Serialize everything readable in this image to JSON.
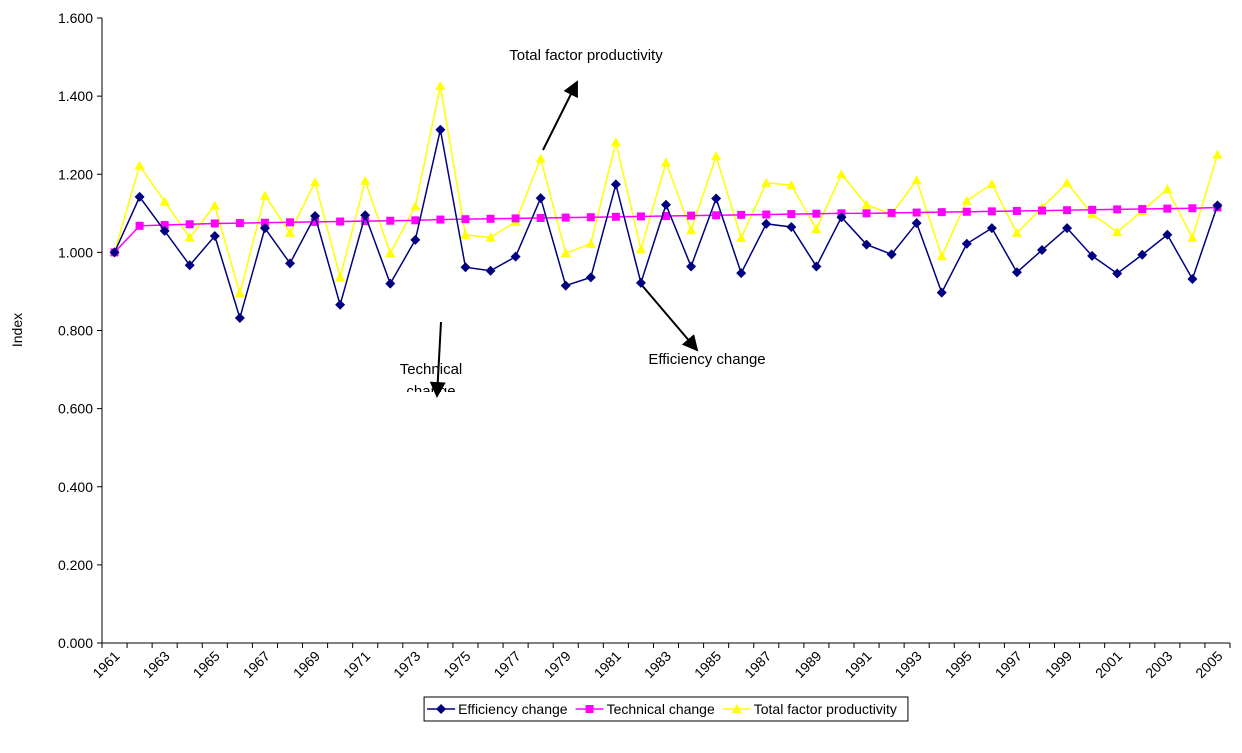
{
  "chart_data": {
    "type": "line",
    "y_label": "Index",
    "categories": [
      "1961",
      null,
      "1963",
      null,
      "1965",
      null,
      "1967",
      null,
      "1969",
      null,
      "1971",
      null,
      "1973",
      null,
      "1975",
      null,
      "1977",
      null,
      "1979",
      null,
      "1981",
      null,
      "1983",
      null,
      "1985",
      null,
      "1987",
      null,
      "1989",
      null,
      "1991",
      null,
      "1993",
      null,
      "1995",
      null,
      "1997",
      null,
      "1999",
      null,
      "2001",
      null,
      "2003",
      null,
      "2005"
    ],
    "series": [
      {
        "name": "Efficiency change",
        "color": "#000080",
        "marker": "diamond",
        "values": [
          1.0,
          1.142,
          1.055,
          0.967,
          1.042,
          0.832,
          1.062,
          0.972,
          1.093,
          0.866,
          1.095,
          0.92,
          1.032,
          1.314,
          0.962,
          0.953,
          0.989,
          1.139,
          0.915,
          0.936,
          1.174,
          0.922,
          1.122,
          0.964,
          1.138,
          0.947,
          1.073,
          1.065,
          0.964,
          1.09,
          1.02,
          0.995,
          1.075,
          0.897,
          1.022,
          1.062,
          0.949,
          1.006,
          1.062,
          0.991,
          0.946,
          0.994,
          1.045,
          0.932,
          1.12
        ]
      },
      {
        "name": "Technical change",
        "color": "#ff00ff",
        "marker": "square",
        "values": [
          1.0,
          1.068,
          1.07,
          1.072,
          1.074,
          1.075,
          1.076,
          1.077,
          1.078,
          1.079,
          1.08,
          1.081,
          1.082,
          1.084,
          1.085,
          1.086,
          1.087,
          1.088,
          1.089,
          1.09,
          1.091,
          1.092,
          1.093,
          1.094,
          1.095,
          1.096,
          1.097,
          1.098,
          1.099,
          1.1,
          1.1,
          1.101,
          1.102,
          1.103,
          1.104,
          1.105,
          1.106,
          1.107,
          1.108,
          1.109,
          1.11,
          1.111,
          1.112,
          1.113,
          1.115
        ]
      },
      {
        "name": "Total factor productivity",
        "color": "#ffff00",
        "marker": "triangle",
        "values": [
          1.0,
          1.222,
          1.13,
          1.038,
          1.12,
          0.895,
          1.145,
          1.05,
          1.18,
          0.936,
          1.183,
          0.998,
          1.118,
          1.426,
          1.045,
          1.038,
          1.078,
          1.24,
          0.998,
          1.022,
          1.282,
          1.008,
          1.23,
          1.057,
          1.246,
          1.037,
          1.178,
          1.172,
          1.06,
          1.2,
          1.122,
          1.098,
          1.185,
          0.99,
          1.132,
          1.175,
          1.05,
          1.115,
          1.178,
          1.098,
          1.052,
          1.106,
          1.162,
          1.037,
          1.25
        ]
      }
    ],
    "ylim": [
      0,
      1.6
    ],
    "yticks": [
      {
        "value": 0,
        "label": "0.000"
      },
      {
        "value": 0.2,
        "label": "0.200"
      },
      {
        "value": 0.4,
        "label": "0.400"
      },
      {
        "value": 0.6,
        "label": "0.600"
      },
      {
        "value": 0.8,
        "label": "0.800"
      },
      {
        "value": 1.0,
        "label": "1.000"
      },
      {
        "value": 1.2,
        "label": "1.200"
      },
      {
        "value": 1.4,
        "label": "1.400"
      },
      {
        "value": 1.6,
        "label": "1.600"
      }
    ],
    "legend": "bottom",
    "annotations": [
      {
        "text": "Total factor productivity"
      },
      {
        "text": "Technical change"
      },
      {
        "text": "Efficiency change"
      }
    ]
  }
}
